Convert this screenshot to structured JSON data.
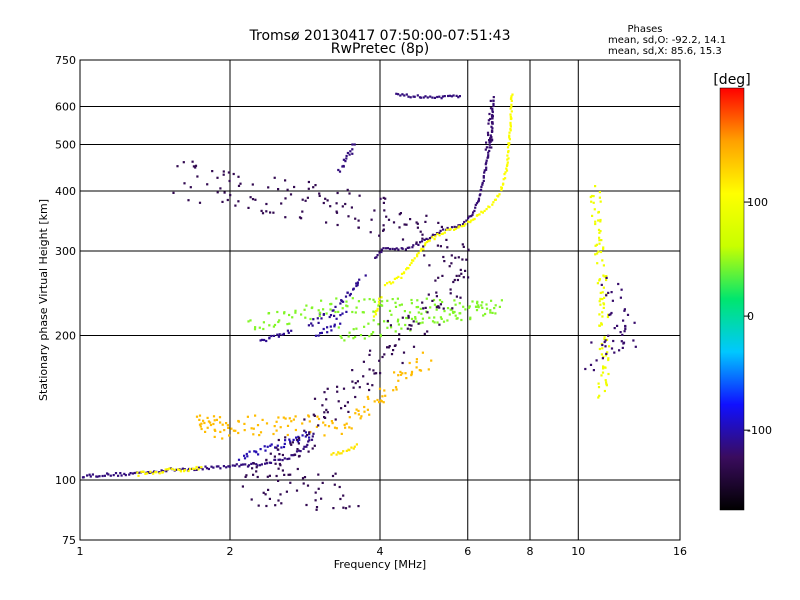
{
  "chart_data": {
    "type": "scatter",
    "title": "Tromsø 20130417 07:50:00-07:51:43",
    "subtitle": "RwPretec (8p)",
    "xlabel": "Frequency [MHz]",
    "ylabel": "Stationary phase Virtual Height [km]",
    "x_scale": "log",
    "y_scale": "log",
    "xlim": [
      1,
      16
    ],
    "ylim": [
      75,
      750
    ],
    "grid": true,
    "x_ticks": [
      {
        "value": 1,
        "label": "1"
      },
      {
        "value": 2,
        "label": "2"
      },
      {
        "value": 4,
        "label": "4"
      },
      {
        "value": 6,
        "label": "6"
      },
      {
        "value": 8,
        "label": "8"
      },
      {
        "value": 10,
        "label": "10"
      },
      {
        "value": 16,
        "label": "16"
      }
    ],
    "y_ticks": [
      {
        "value": 75,
        "label": "75"
      },
      {
        "value": 100,
        "label": "100"
      },
      {
        "value": 200,
        "label": "200"
      },
      {
        "value": 300,
        "label": "300"
      },
      {
        "value": 400,
        "label": "400"
      },
      {
        "value": 500,
        "label": "500"
      },
      {
        "value": 600,
        "label": "600"
      },
      {
        "value": 750,
        "label": "750"
      }
    ],
    "stats": {
      "heading": "Phases",
      "line1": "mean, sd,O: -92.2, 14.1",
      "line2": "mean, sd,X:  85.6, 15.3"
    },
    "colorbar": {
      "label": "[deg]",
      "range": [
        -170,
        200
      ],
      "ticks": [
        {
          "value": 100,
          "label": "100"
        },
        {
          "value": 0,
          "label": "0"
        },
        {
          "value": -100,
          "label": "-100"
        }
      ],
      "colors": [
        "#000000",
        "#3a0c5e",
        "#1010ff",
        "#00c8ff",
        "#00e66e",
        "#c8ff00",
        "#ffff00",
        "#ffa000",
        "#ff0000"
      ]
    },
    "segments": [
      {
        "name": "",
        "phase": -115,
        "noise": 0.015,
        "points": [
          [
            1.0,
            102
          ],
          [
            1.25,
            103
          ],
          [
            1.5,
            105
          ],
          [
            1.8,
            106
          ],
          [
            2.0,
            107
          ],
          [
            2.3,
            108
          ],
          [
            2.6,
            111
          ],
          [
            2.8,
            116
          ],
          [
            2.95,
            124
          ]
        ]
      },
      {
        "name": "",
        "phase": 110,
        "noise": 0.02,
        "points": [
          [
            1.3,
            103
          ],
          [
            1.55,
            105
          ],
          [
            1.75,
            106
          ]
        ]
      },
      {
        "name": "",
        "phase": -100,
        "noise": 0.035,
        "points": [
          [
            2.1,
            112
          ],
          [
            2.5,
            118
          ],
          [
            2.9,
            125
          ]
        ]
      },
      {
        "name": "",
        "phase": -110,
        "noise": 0.02,
        "points": [
          [
            2.3,
            195
          ],
          [
            2.5,
            200
          ],
          [
            2.65,
            205
          ]
        ]
      },
      {
        "name": "",
        "phase": -110,
        "noise": 0.05,
        "points": [
          [
            2.9,
            210
          ],
          [
            3.2,
            225
          ],
          [
            3.5,
            250
          ],
          [
            3.7,
            265
          ]
        ]
      },
      {
        "name": "",
        "phase": -105,
        "noise": 0.04,
        "points": [
          [
            3.0,
            200
          ],
          [
            3.25,
            210
          ],
          [
            3.4,
            220
          ]
        ]
      },
      {
        "name": "",
        "phase": -115,
        "noise": 0.03,
        "points": [
          [
            3.3,
            440
          ],
          [
            3.45,
            470
          ],
          [
            3.55,
            500
          ]
        ]
      },
      {
        "name": "",
        "phase": 120,
        "noise": 0.015,
        "points": [
          [
            3.2,
            113
          ],
          [
            3.45,
            115
          ],
          [
            3.6,
            118
          ]
        ]
      },
      {
        "name": "",
        "phase": -118,
        "noise": 0.012,
        "points": [
          [
            3.9,
            290
          ],
          [
            4.1,
            305
          ],
          [
            4.5,
            302
          ],
          [
            4.9,
            315
          ],
          [
            5.3,
            330
          ],
          [
            5.8,
            340
          ],
          [
            6.1,
            355
          ],
          [
            6.3,
            380
          ],
          [
            6.5,
            440
          ],
          [
            6.7,
            530
          ],
          [
            6.75,
            620
          ]
        ]
      },
      {
        "name": "",
        "phase": 105,
        "noise": 0.015,
        "points": [
          [
            4.1,
            255
          ],
          [
            4.4,
            265
          ],
          [
            4.7,
            290
          ],
          [
            5.0,
            315
          ],
          [
            5.4,
            330
          ],
          [
            5.9,
            340
          ],
          [
            6.3,
            355
          ],
          [
            6.7,
            375
          ],
          [
            7.0,
            400
          ],
          [
            7.2,
            450
          ],
          [
            7.3,
            540
          ],
          [
            7.35,
            640
          ]
        ]
      },
      {
        "name": "",
        "phase": 100,
        "noise": 0.03,
        "points": [
          [
            3.9,
            220
          ],
          [
            4.0,
            240
          ]
        ]
      },
      {
        "name": "",
        "phase": -115,
        "noise": 0.012,
        "points": [
          [
            4.3,
            635
          ],
          [
            4.7,
            630
          ],
          [
            5.2,
            625
          ],
          [
            5.8,
            632
          ]
        ]
      },
      {
        "name": "",
        "phase": -120,
        "noise": 0.06,
        "points": [
          [
            6.6,
            480
          ],
          [
            6.65,
            560
          ],
          [
            6.7,
            610
          ]
        ]
      },
      {
        "name": "",
        "phase": 95,
        "noise": 0.1,
        "points": [
          [
            10.8,
            400
          ],
          [
            11.3,
            200
          ],
          [
            11.2,
            150
          ]
        ]
      },
      {
        "name": "",
        "phase": -120,
        "noise": 0.15,
        "points": [
          [
            11.5,
            250
          ],
          [
            12.8,
            200
          ],
          [
            10.5,
            180
          ]
        ]
      },
      {
        "name": "",
        "phase": 45,
        "noise": 0.08,
        "points": [
          [
            2.2,
            210
          ],
          [
            3.1,
            230
          ],
          [
            6.9,
            230
          ],
          [
            3.3,
            200
          ]
        ]
      },
      {
        "name": "",
        "phase": 140,
        "noise": 0.1,
        "points": [
          [
            2.0,
            125
          ],
          [
            1.7,
            130
          ],
          [
            3.4,
            130
          ],
          [
            5.0,
            180
          ]
        ]
      },
      {
        "name": "",
        "phase": -130,
        "noise": 0.2,
        "points": [
          [
            1.6,
            420
          ],
          [
            4.5,
            350
          ],
          [
            6.0,
            270
          ],
          [
            2.2,
            97
          ],
          [
            3.5,
            95
          ]
        ]
      }
    ]
  }
}
